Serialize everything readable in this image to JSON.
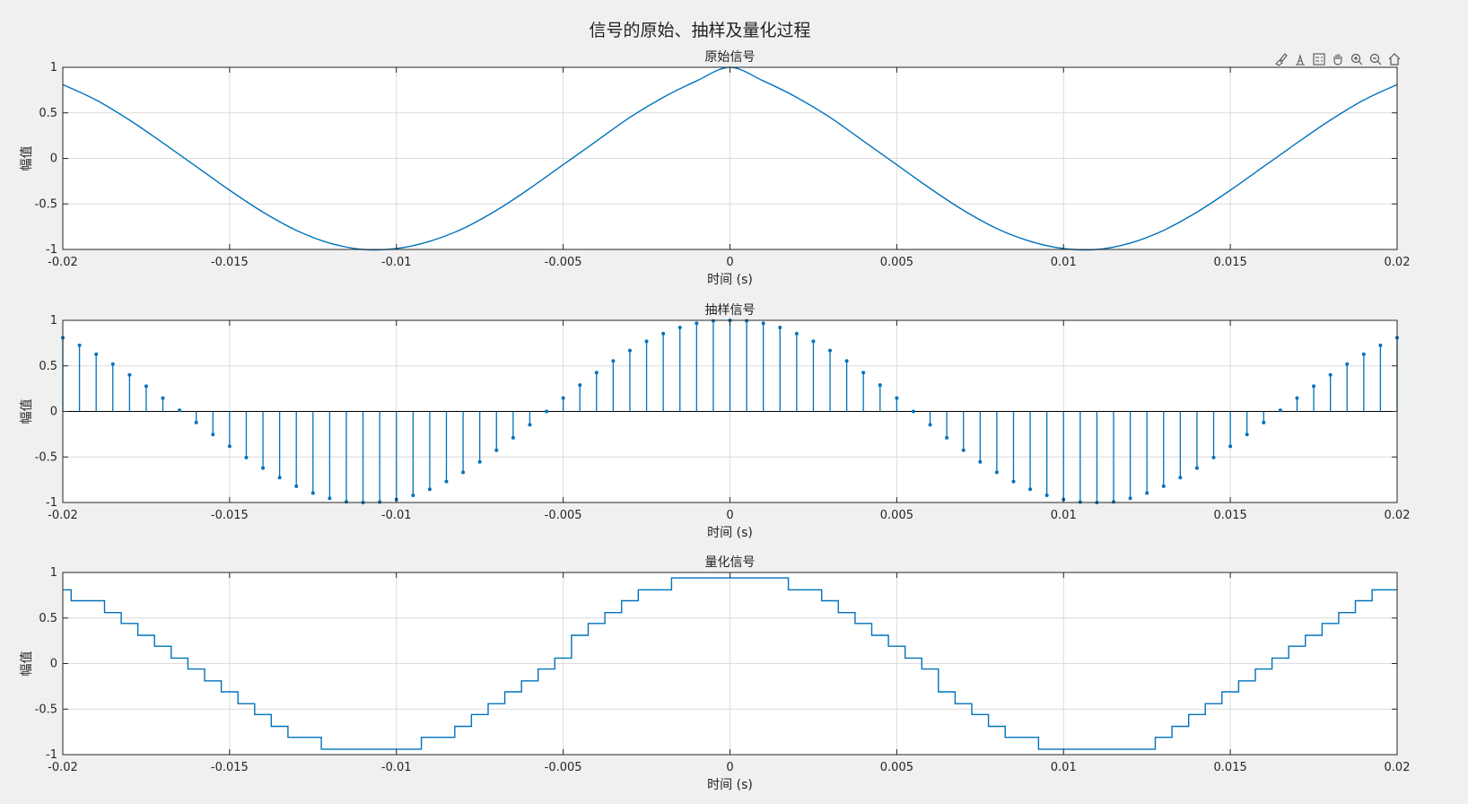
{
  "figure": {
    "title": "信号的原始、抽样及量化过程",
    "background": "#f0f0f0",
    "line_color": "#0072bd",
    "grid_color": "#dcdcdc"
  },
  "toolbar": {
    "icons": [
      "brush-icon",
      "datatip-icon",
      "legend-icon",
      "pan-icon",
      "zoom-in-icon",
      "zoom-out-icon",
      "home-icon"
    ]
  },
  "chart_data": [
    {
      "type": "line",
      "title": "原始信号",
      "xlabel": "时间 (s)",
      "ylabel": "幅值",
      "xlim": [
        -0.02,
        0.02
      ],
      "ylim": [
        -1,
        1
      ],
      "xticks": [
        -0.02,
        -0.015,
        -0.01,
        -0.005,
        0,
        0.005,
        0.01,
        0.015,
        0.02
      ],
      "xtick_labels": [
        "-0.02",
        "-0.015",
        "-0.01",
        "-0.005",
        "0",
        "0.005",
        "0.01",
        "0.015",
        "0.02"
      ],
      "yticks": [
        -1,
        -0.5,
        0,
        0.5,
        1
      ],
      "ytick_labels": [
        "-1",
        "-0.5",
        "0",
        "0.5",
        "1"
      ],
      "grid": true,
      "series": [
        {
          "x": [
            -0.02,
            -0.019,
            -0.018,
            -0.017,
            -0.016,
            -0.015,
            -0.014,
            -0.013,
            -0.012,
            -0.011,
            -0.01,
            -0.009,
            -0.008,
            -0.007,
            -0.006,
            -0.005,
            -0.004,
            -0.003,
            -0.002,
            -0.001,
            0,
            0.001,
            0.002,
            0.003,
            0.004,
            0.005,
            0.006,
            0.007,
            0.008,
            0.009,
            0.01,
            0.011,
            0.012,
            0.013,
            0.014,
            0.015,
            0.016,
            0.017,
            0.018,
            0.019,
            0.02
          ],
          "y": [
            0.81,
            0.64,
            0.42,
            0.17,
            -0.09,
            -0.35,
            -0.59,
            -0.79,
            -0.93,
            -1.0,
            -0.99,
            -0.91,
            -0.77,
            -0.57,
            -0.33,
            -0.07,
            0.19,
            0.45,
            0.67,
            0.85,
            1.0,
            0.85,
            0.67,
            0.45,
            0.19,
            -0.07,
            -0.33,
            -0.57,
            -0.77,
            -0.91,
            -0.99,
            -1.0,
            -0.93,
            -0.79,
            -0.59,
            -0.35,
            -0.09,
            0.17,
            0.42,
            0.64,
            0.81
          ]
        }
      ]
    },
    {
      "type": "stem",
      "title": "抽样信号",
      "xlabel": "时间 (s)",
      "ylabel": "幅值",
      "xlim": [
        -0.02,
        0.02
      ],
      "ylim": [
        -1,
        1
      ],
      "xticks": [
        -0.02,
        -0.015,
        -0.01,
        -0.005,
        0,
        0.005,
        0.01,
        0.015,
        0.02
      ],
      "xtick_labels": [
        "-0.02",
        "-0.015",
        "-0.01",
        "-0.005",
        "0",
        "0.005",
        "0.01",
        "0.015",
        "0.02"
      ],
      "yticks": [
        -1,
        -0.5,
        0,
        0.5,
        1
      ],
      "ytick_labels": [
        "-1",
        "-0.5",
        "0",
        "0.5",
        "1"
      ],
      "grid": true,
      "series": [
        {
          "x": [
            -0.02,
            -0.0195,
            -0.019,
            -0.0185,
            -0.018,
            -0.0175,
            -0.017,
            -0.0165,
            -0.016,
            -0.0155,
            -0.015,
            -0.0145,
            -0.014,
            -0.0135,
            -0.013,
            -0.0125,
            -0.012,
            -0.0115,
            -0.011,
            -0.0105,
            -0.01,
            -0.0095,
            -0.009,
            -0.0085,
            -0.008,
            -0.0075,
            -0.007,
            -0.0065,
            -0.006,
            -0.0055,
            -0.005,
            -0.0045,
            -0.004,
            -0.0035,
            -0.003,
            -0.0025,
            -0.002,
            -0.0015,
            -0.001,
            -0.0005,
            0,
            0.0005,
            0.001,
            0.0015,
            0.002,
            0.0025,
            0.003,
            0.0035,
            0.004,
            0.0045,
            0.005,
            0.0055,
            0.006,
            0.0065,
            0.007,
            0.0075,
            0.008,
            0.0085,
            0.009,
            0.0095,
            0.01,
            0.0105,
            0.011,
            0.0115,
            0.012,
            0.0125,
            0.013,
            0.0135,
            0.014,
            0.0145,
            0.015,
            0.0155,
            0.016,
            0.0165,
            0.017,
            0.0175,
            0.018,
            0.0185,
            0.019,
            0.0195,
            0.02
          ],
          "y": [
            0.809,
            0.725,
            0.628,
            0.52,
            0.402,
            0.277,
            0.146,
            0.012,
            -0.122,
            -0.254,
            -0.383,
            -0.506,
            -0.622,
            -0.727,
            -0.821,
            -0.897,
            -0.955,
            -0.993,
            -1.0,
            -0.995,
            -0.968,
            -0.921,
            -0.855,
            -0.77,
            -0.669,
            -0.554,
            -0.426,
            -0.29,
            -0.147,
            0.0,
            0.146,
            0.29,
            0.426,
            0.554,
            0.669,
            0.77,
            0.855,
            0.921,
            0.968,
            0.995,
            1.0,
            0.995,
            0.968,
            0.921,
            0.855,
            0.77,
            0.669,
            0.554,
            0.426,
            0.29,
            0.146,
            0.0,
            -0.147,
            -0.29,
            -0.426,
            -0.554,
            -0.669,
            -0.77,
            -0.855,
            -0.921,
            -0.968,
            -0.995,
            -1.0,
            -0.993,
            -0.955,
            -0.897,
            -0.821,
            -0.727,
            -0.622,
            -0.506,
            -0.383,
            -0.254,
            -0.122,
            0.012,
            0.146,
            0.277,
            0.402,
            0.52,
            0.628,
            0.725,
            0.809
          ]
        }
      ]
    },
    {
      "type": "line",
      "title": "量化信号",
      "xlabel": "时间 (s)",
      "ylabel": "幅值",
      "xlim": [
        -0.02,
        0.02
      ],
      "ylim": [
        -1,
        1
      ],
      "xticks": [
        -0.02,
        -0.015,
        -0.01,
        -0.005,
        0,
        0.005,
        0.01,
        0.015,
        0.02
      ],
      "xtick_labels": [
        "-0.02",
        "-0.015",
        "-0.01",
        "-0.005",
        "0",
        "0.005",
        "0.01",
        "0.015",
        "0.02"
      ],
      "yticks": [
        -1,
        -0.5,
        0,
        0.5,
        1
      ],
      "ytick_labels": [
        "-1",
        "-0.5",
        "0",
        "0.5",
        "1"
      ],
      "grid": true,
      "step": true,
      "series": [
        {
          "x": [
            -0.02,
            -0.0195,
            -0.019,
            -0.0185,
            -0.018,
            -0.0175,
            -0.017,
            -0.0165,
            -0.016,
            -0.0155,
            -0.015,
            -0.0145,
            -0.014,
            -0.0135,
            -0.013,
            -0.0125,
            -0.012,
            -0.0115,
            -0.011,
            -0.0105,
            -0.01,
            -0.0095,
            -0.009,
            -0.0085,
            -0.008,
            -0.0075,
            -0.007,
            -0.0065,
            -0.006,
            -0.0055,
            -0.005,
            -0.0045,
            -0.004,
            -0.0035,
            -0.003,
            -0.0025,
            -0.002,
            -0.0015,
            -0.001,
            -0.0005,
            0,
            0.0005,
            0.001,
            0.0015,
            0.002,
            0.0025,
            0.003,
            0.0035,
            0.004,
            0.0045,
            0.005,
            0.0055,
            0.006,
            0.0065,
            0.007,
            0.0075,
            0.008,
            0.0085,
            0.009,
            0.0095,
            0.01,
            0.0105,
            0.011,
            0.0115,
            0.012,
            0.0125,
            0.013,
            0.0135,
            0.014,
            0.0145,
            0.015,
            0.0155,
            0.016,
            0.0165,
            0.017,
            0.0175,
            0.018,
            0.0185,
            0.019,
            0.0195,
            0.02
          ],
          "y": [
            0.81,
            0.69,
            0.69,
            0.56,
            0.44,
            0.31,
            0.19,
            0.06,
            -0.06,
            -0.19,
            -0.31,
            -0.44,
            -0.56,
            -0.69,
            -0.81,
            -0.81,
            -0.94,
            -0.94,
            -0.94,
            -0.94,
            -0.94,
            -0.94,
            -0.81,
            -0.81,
            -0.69,
            -0.56,
            -0.44,
            -0.31,
            -0.19,
            -0.06,
            0.06,
            0.31,
            0.44,
            0.56,
            0.69,
            0.81,
            0.81,
            0.94,
            0.94,
            0.94,
            0.94,
            0.94,
            0.94,
            0.94,
            0.81,
            0.81,
            0.69,
            0.56,
            0.44,
            0.31,
            0.19,
            0.06,
            -0.06,
            -0.31,
            -0.44,
            -0.56,
            -0.69,
            -0.81,
            -0.81,
            -0.94,
            -0.94,
            -0.94,
            -0.94,
            -0.94,
            -0.94,
            -0.94,
            -0.81,
            -0.69,
            -0.56,
            -0.44,
            -0.31,
            -0.19,
            -0.06,
            0.06,
            0.19,
            0.31,
            0.44,
            0.56,
            0.69,
            0.81,
            0.81
          ]
        }
      ]
    }
  ]
}
